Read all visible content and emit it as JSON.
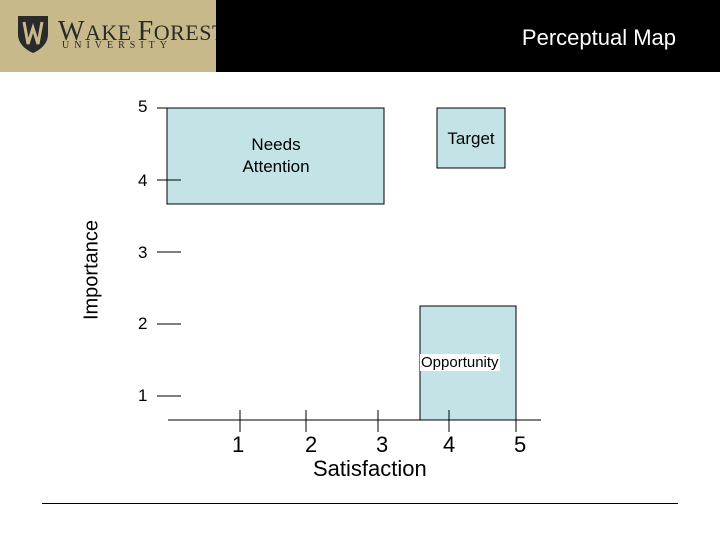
{
  "header": {
    "logo_word_cap1": "W",
    "logo_word_rest1": "AKE ",
    "logo_word_cap2": "F",
    "logo_word_rest2": "OREST",
    "logo_sub": "UNIVERSITY",
    "title": "Perceptual Map"
  },
  "colors": {
    "logo_panel": "#c8b98a",
    "title_panel": "#000000",
    "box_fill": "#c3e3e6"
  },
  "chart_data": {
    "type": "quadrant-map",
    "xlabel": "Satisfaction",
    "ylabel": "Importance",
    "x_ticks": [
      "1",
      "2",
      "3",
      "4",
      "5"
    ],
    "y_ticks": [
      "5",
      "4",
      "3",
      "2",
      "1"
    ],
    "regions": [
      {
        "name": "Needs Attention",
        "label_line1": "Needs",
        "label_line2": "Attention",
        "x_range": [
          0,
          3
        ],
        "y_range": [
          3.7,
          5
        ]
      },
      {
        "name": "Target",
        "label": "Target",
        "x_range": [
          3.8,
          4.8
        ],
        "y_range": [
          4.2,
          5
        ]
      },
      {
        "name": "Opportunity",
        "label": "Opportunity",
        "x_range": [
          3.6,
          5
        ],
        "y_range": [
          0.8,
          2.3
        ]
      }
    ]
  }
}
